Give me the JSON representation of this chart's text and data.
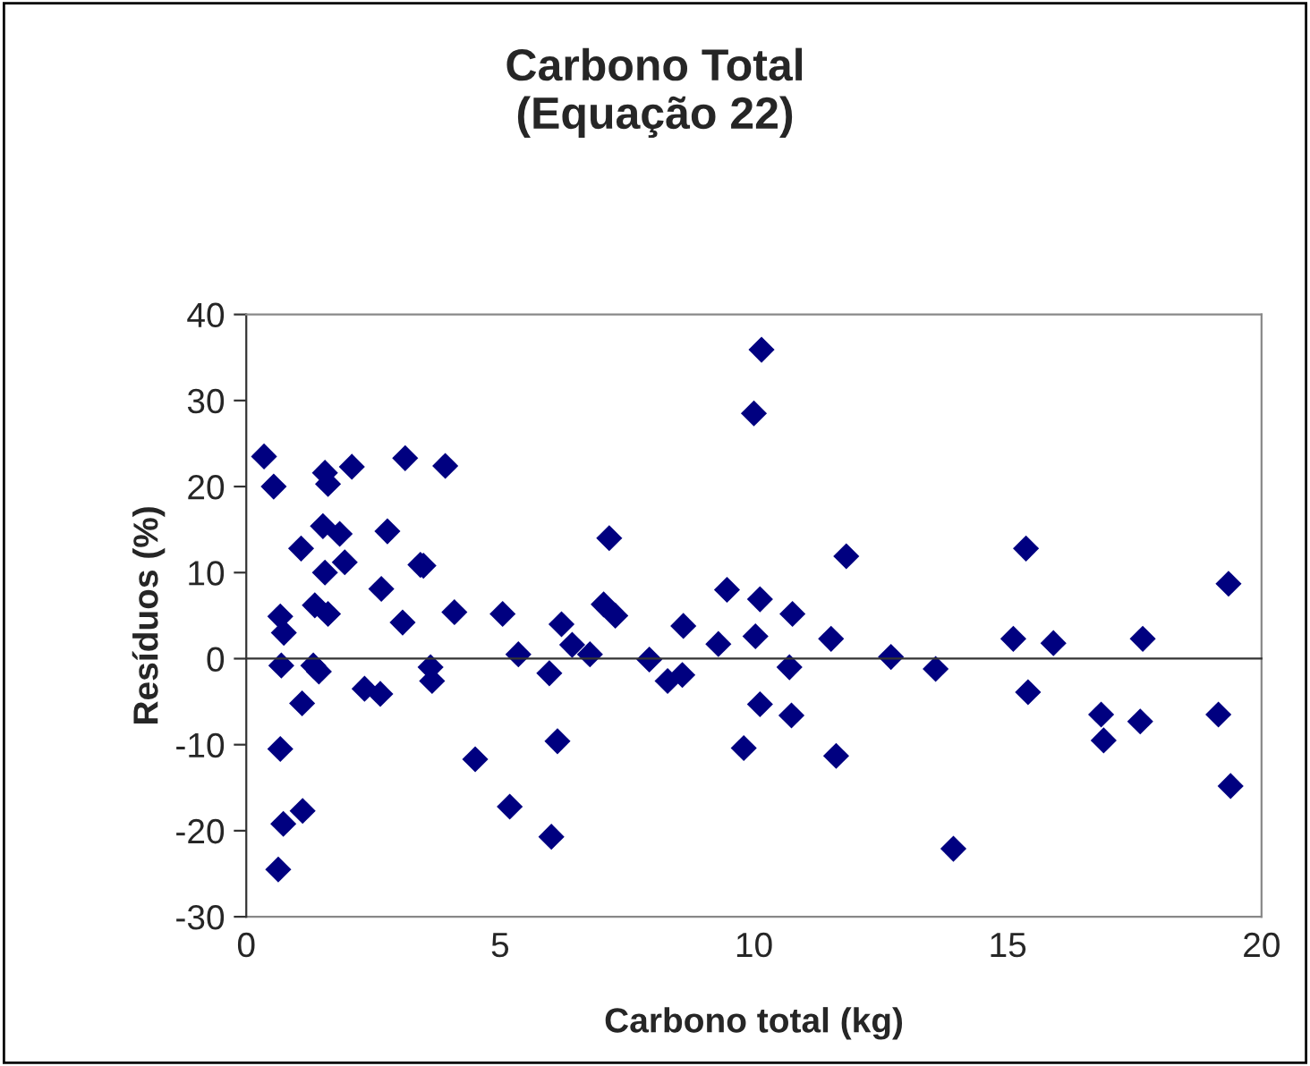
{
  "chart_data": {
    "type": "scatter",
    "title": "Carbono Total\n(Equação 22)",
    "xlabel": "Carbono total (kg)",
    "ylabel": "Resíduos (%)",
    "xlim": [
      0,
      20
    ],
    "xticks": [
      0,
      5,
      10,
      15,
      20
    ],
    "ylim": [
      -30,
      40
    ],
    "yticks": [
      -30,
      -20,
      -10,
      0,
      10,
      20,
      30,
      40
    ],
    "legend": false,
    "marker": "diamond",
    "series": [
      {
        "color": "#000080",
        "x": [
          0.35,
          0.54,
          1.55,
          1.61,
          2.08,
          3.13,
          3.92,
          1.51,
          1.84,
          1.08,
          2.78,
          7.15,
          1.94,
          1.55,
          3.43,
          3.49,
          2.66,
          1.35,
          1.61,
          0.67,
          0.74,
          3.08,
          4.1,
          5.05,
          5.36,
          6.21,
          6.42,
          6.77,
          7.04,
          7.27,
          7.94,
          8.3,
          8.59,
          8.61,
          9.3,
          9.47,
          10.12,
          10.03,
          10.0,
          10.15,
          0.69,
          1.32,
          1.43,
          1.1,
          2.33,
          2.64,
          3.63,
          3.66,
          5.97,
          0.67,
          6.13,
          4.51,
          5.19,
          6.01,
          0.73,
          1.11,
          0.63,
          9.8,
          10.12,
          10.7,
          10.74,
          10.76,
          11.82,
          11.52,
          11.62,
          12.7,
          13.58,
          13.93,
          15.11,
          15.36,
          15.4,
          15.9,
          16.84,
          16.89,
          17.66,
          17.61,
          19.15,
          19.35,
          19.39
        ],
        "values": [
          23.5,
          20.0,
          21.6,
          20.3,
          22.3,
          23.3,
          22.4,
          15.4,
          14.5,
          12.8,
          14.8,
          14.0,
          11.2,
          10.0,
          10.9,
          10.8,
          8.1,
          6.2,
          5.2,
          4.9,
          3.0,
          4.2,
          5.4,
          5.2,
          0.5,
          4.0,
          1.6,
          0.5,
          6.3,
          5.0,
          -0.1,
          -2.6,
          -1.9,
          3.8,
          1.7,
          8.0,
          6.9,
          2.6,
          28.5,
          35.9,
          -0.8,
          -0.8,
          -1.5,
          -5.2,
          -3.5,
          -4.1,
          -1.0,
          -2.6,
          -1.7,
          -10.5,
          -9.6,
          -11.7,
          -17.2,
          -20.7,
          -19.2,
          -17.7,
          -24.5,
          -10.4,
          -5.3,
          -1.0,
          -6.6,
          5.2,
          11.9,
          2.3,
          -11.3,
          0.2,
          -1.2,
          -22.1,
          2.3,
          12.8,
          -3.9,
          1.8,
          -6.5,
          -9.5,
          2.3,
          -7.3,
          -6.5,
          8.7,
          -14.8
        ]
      }
    ]
  }
}
